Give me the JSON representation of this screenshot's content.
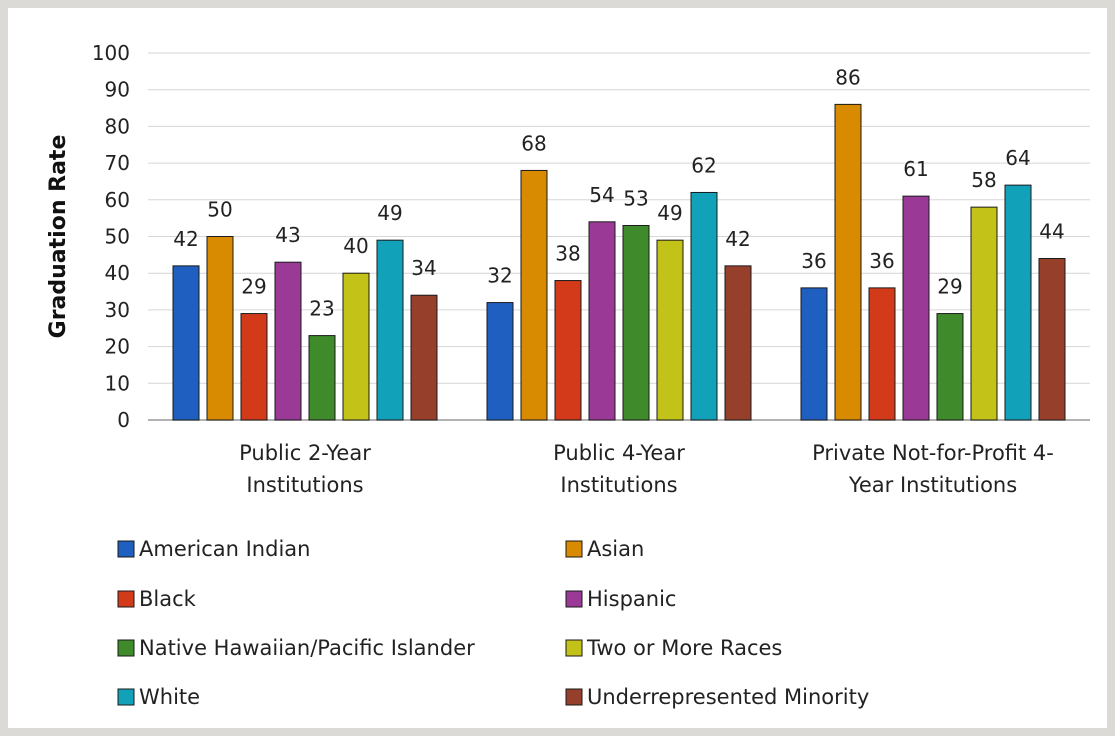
{
  "chart_data": {
    "type": "bar",
    "ylabel": "Graduation Rate",
    "xlabel": "",
    "title": "",
    "ylim": [
      0,
      100
    ],
    "yticks": [
      0,
      10,
      20,
      30,
      40,
      50,
      60,
      70,
      80,
      90,
      100
    ],
    "grid": true,
    "legend_position": "bottom",
    "categories": [
      [
        "Public 2-Year",
        "Institutions"
      ],
      [
        "Public 4-Year",
        "Institutions"
      ],
      [
        "Private Not-for-Profit 4-",
        "Year Institutions"
      ]
    ],
    "series": [
      {
        "name": "American Indian",
        "color": "#1f5fbf",
        "values": [
          42,
          32,
          36
        ]
      },
      {
        "name": "Asian",
        "color": "#d88a00",
        "values": [
          50,
          68,
          86
        ]
      },
      {
        "name": "Black",
        "color": "#d23a1a",
        "values": [
          29,
          38,
          36
        ]
      },
      {
        "name": "Hispanic",
        "color": "#9b3a96",
        "values": [
          43,
          54,
          61
        ]
      },
      {
        "name": "Native Hawaiian/Pacific Islander",
        "color": "#3f8a2a",
        "values": [
          23,
          53,
          29
        ]
      },
      {
        "name": "Two or More Races",
        "color": "#c2c218",
        "values": [
          40,
          49,
          58
        ]
      },
      {
        "name": "White",
        "color": "#11a1b8",
        "values": [
          49,
          62,
          64
        ]
      },
      {
        "name": "Underrepresented Minority",
        "color": "#96402c",
        "values": [
          34,
          42,
          44
        ]
      }
    ]
  }
}
